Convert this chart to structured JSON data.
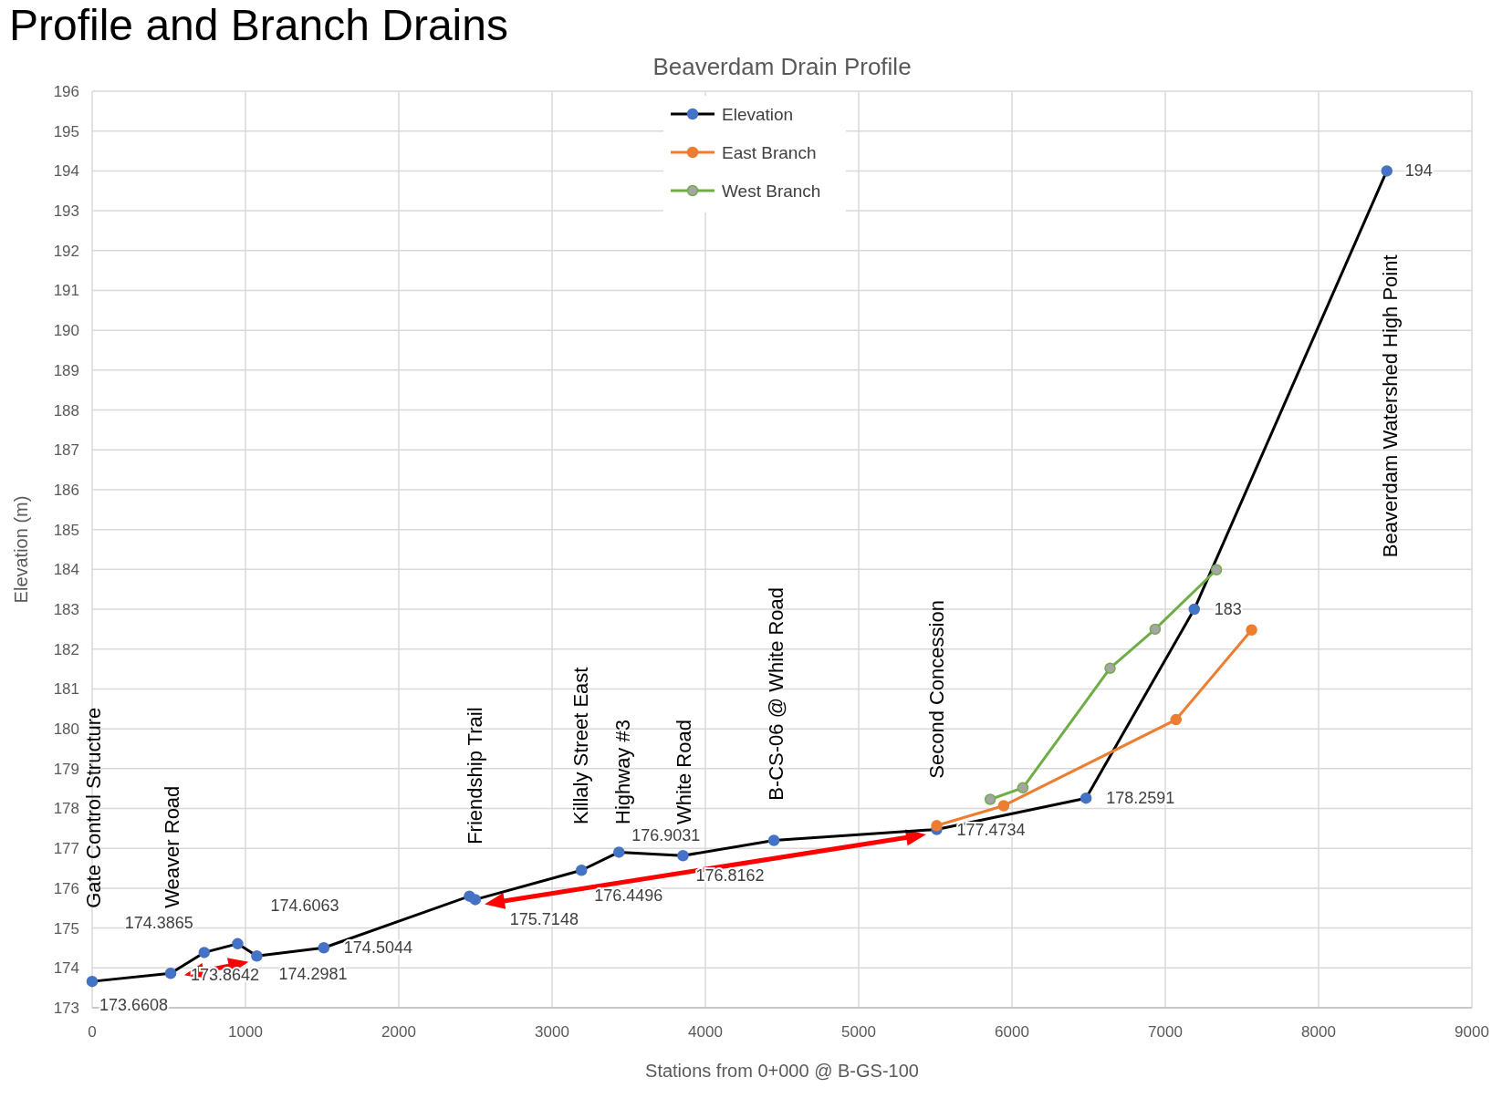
{
  "chart_data": {
    "type": "line",
    "title": "Profile and Branch Drains",
    "subtitle": "Beaverdam Drain Profile",
    "xlabel": "Stations from 0+000 @ B-GS-100",
    "ylabel": "Elevation (m)",
    "xlim": [
      0,
      9000
    ],
    "xticks": [
      0,
      1000,
      2000,
      3000,
      4000,
      5000,
      6000,
      7000,
      8000,
      9000
    ],
    "ylim": [
      173,
      196
    ],
    "yticks": [
      173,
      174,
      175,
      176,
      177,
      178,
      179,
      180,
      181,
      182,
      183,
      184,
      185,
      186,
      187,
      188,
      189,
      190,
      191,
      192,
      193,
      194,
      195,
      196
    ],
    "grid": true,
    "legend": "top",
    "marker": "circle",
    "line_style": "solid",
    "series": [
      {
        "name": "Elevation",
        "color": "#000000",
        "colors": [
          "#4472c4",
          "#4472c4",
          "#4472c4",
          "#4472c4",
          "#4472c4",
          "#4472c4",
          "#4472c4",
          "#4472c4",
          "#4472c4",
          "#4472c4",
          "#4472c4",
          "#4472c4",
          "#4472c4",
          "#4472c4",
          "#4472c4",
          "#4472c4"
        ],
        "x": [
          0,
          512,
          731,
          949,
          1074,
          1511,
          2461,
          2499,
          3192,
          3436,
          3854,
          4447,
          5509,
          6483,
          7189,
          8445
        ],
        "values": [
          173.6608,
          173.8642,
          174.3865,
          174.6063,
          174.2981,
          174.5044,
          175.8,
          175.7148,
          176.4496,
          176.9031,
          176.8162,
          177.2,
          177.4734,
          178.2591,
          183,
          194
        ],
        "value_labels": [
          "173.6608",
          "173.8642",
          "174.3865",
          "174.6063",
          "174.2981",
          "174.5044",
          null,
          "175.7148",
          "176.4496",
          "176.9031",
          "176.8162",
          null,
          "177.4734",
          "178.2591",
          "183",
          "194"
        ]
      },
      {
        "name": "East Branch",
        "color": "#ed7d31",
        "x": [
          5509,
          5946,
          7070,
          7563
        ],
        "values": [
          177.57,
          178.07,
          180.23,
          182.48
        ]
      },
      {
        "name": "West Branch",
        "color": "#70ad47",
        "colors": [
          "#a5a5a5",
          "#a5a5a5",
          "#a5a5a5",
          "#a5a5a5",
          "#a5a5a5"
        ],
        "x": [
          5858,
          6071,
          6640,
          6934,
          7334
        ],
        "values": [
          178.23,
          178.52,
          181.52,
          182.5,
          183.99
        ]
      }
    ],
    "annotations": [
      "Gate Control Structure",
      "Weaver Road",
      "Friendship Trail",
      "Killaly Street East",
      "Highway #3",
      "White Road",
      "B-CS-06 @ White Road",
      "Second Concession",
      "Beaverdam Watershed High Point"
    ]
  }
}
